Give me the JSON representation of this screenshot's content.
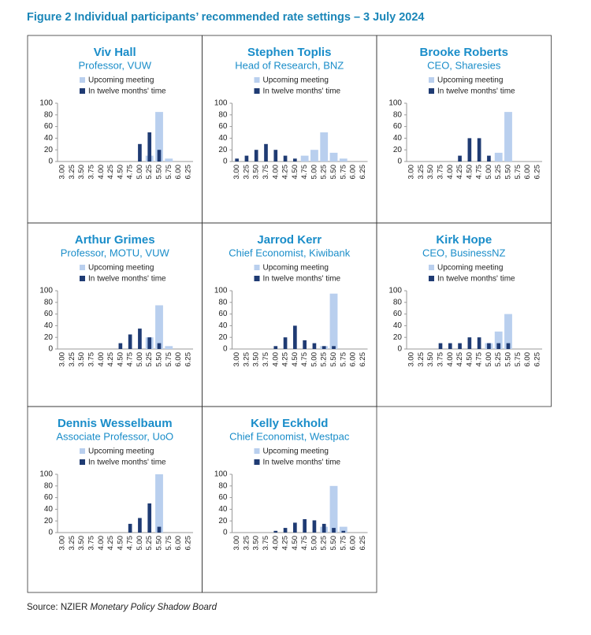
{
  "title": "Figure 2 Individual participants’ recommended rate settings – 3 July 2024",
  "source": {
    "prefix": "Source: NZIER",
    "publication": "Monetary Policy Shadow Board"
  },
  "chart_data": [
    {
      "type": "bar",
      "title": "Viv Hall",
      "subtitle": "Professor, VUW",
      "categories": [
        "3.00",
        "3.25",
        "3.50",
        "3.75",
        "4.00",
        "4.25",
        "4.50",
        "4.75",
        "5.00",
        "5.25",
        "5.50",
        "5.75",
        "6.00",
        "6.25"
      ],
      "series": [
        {
          "name": "Upcoming meeting",
          "color": "#b9cfee",
          "values": [
            0,
            0,
            0,
            0,
            0,
            0,
            0,
            0,
            0,
            10,
            85,
            5,
            0,
            0
          ]
        },
        {
          "name": "In twelve months' time",
          "color": "#1f3b73",
          "values": [
            0,
            0,
            0,
            0,
            0,
            0,
            0,
            0,
            30,
            50,
            20,
            0,
            0,
            0
          ]
        }
      ],
      "ylim": [
        0,
        100
      ],
      "yticks": [
        0,
        20,
        40,
        60,
        80,
        100
      ]
    },
    {
      "type": "bar",
      "title": "Stephen Toplis",
      "subtitle": "Head of Research, BNZ",
      "categories": [
        "3.00",
        "3.25",
        "3.50",
        "3.75",
        "4.00",
        "4.25",
        "4.50",
        "4.75",
        "5.00",
        "5.25",
        "5.50",
        "5.75",
        "6.00",
        "6.25"
      ],
      "series": [
        {
          "name": "Upcoming meeting",
          "color": "#b9cfee",
          "values": [
            0,
            0,
            0,
            0,
            0,
            0,
            0,
            10,
            20,
            50,
            15,
            5,
            0,
            0
          ]
        },
        {
          "name": "In twelve months' time",
          "color": "#1f3b73",
          "values": [
            5,
            10,
            20,
            30,
            20,
            10,
            5,
            0,
            0,
            0,
            0,
            0,
            0,
            0
          ]
        }
      ],
      "ylim": [
        0,
        100
      ],
      "yticks": [
        0,
        20,
        40,
        60,
        80,
        100
      ]
    },
    {
      "type": "bar",
      "title": "Brooke Roberts",
      "subtitle": "CEO, Sharesies",
      "categories": [
        "3.00",
        "3.25",
        "3.50",
        "3.75",
        "4.00",
        "4.25",
        "4.50",
        "4.75",
        "5.00",
        "5.25",
        "5.50",
        "5.75",
        "6.00",
        "6.25"
      ],
      "series": [
        {
          "name": "Upcoming meeting",
          "color": "#b9cfee",
          "values": [
            0,
            0,
            0,
            0,
            0,
            0,
            0,
            0,
            0,
            15,
            85,
            0,
            0,
            0
          ]
        },
        {
          "name": "In twelve months' time",
          "color": "#1f3b73",
          "values": [
            0,
            0,
            0,
            0,
            0,
            10,
            40,
            40,
            10,
            0,
            0,
            0,
            0,
            0
          ]
        }
      ],
      "ylim": [
        0,
        100
      ],
      "yticks": [
        0,
        20,
        40,
        60,
        80,
        100
      ]
    },
    {
      "type": "bar",
      "title": "Arthur Grimes",
      "subtitle": "Professor, MOTU, VUW",
      "categories": [
        "3.00",
        "3.25",
        "3.50",
        "3.75",
        "4.00",
        "4.25",
        "4.50",
        "4.75",
        "5.00",
        "5.25",
        "5.50",
        "5.75",
        "6.00",
        "6.25"
      ],
      "series": [
        {
          "name": "Upcoming meeting",
          "color": "#b9cfee",
          "values": [
            0,
            0,
            0,
            0,
            0,
            0,
            0,
            0,
            0,
            20,
            75,
            5,
            0,
            0
          ]
        },
        {
          "name": "In twelve months' time",
          "color": "#1f3b73",
          "values": [
            0,
            0,
            0,
            0,
            0,
            0,
            10,
            25,
            35,
            20,
            10,
            0,
            0,
            0
          ]
        }
      ],
      "ylim": [
        0,
        100
      ],
      "yticks": [
        0,
        20,
        40,
        60,
        80,
        100
      ]
    },
    {
      "type": "bar",
      "title": "Jarrod Kerr",
      "subtitle": "Chief Economist, Kiwibank",
      "categories": [
        "3.00",
        "3.25",
        "3.50",
        "3.75",
        "4.00",
        "4.25",
        "4.50",
        "4.75",
        "5.00",
        "5.25",
        "5.50",
        "5.75",
        "6.00",
        "6.25"
      ],
      "series": [
        {
          "name": "Upcoming meeting",
          "color": "#b9cfee",
          "values": [
            0,
            0,
            0,
            0,
            0,
            0,
            0,
            0,
            0,
            5,
            95,
            0,
            0,
            0
          ]
        },
        {
          "name": "In twelve months' time",
          "color": "#1f3b73",
          "values": [
            0,
            0,
            0,
            0,
            5,
            20,
            40,
            15,
            10,
            5,
            5,
            0,
            0,
            0
          ]
        }
      ],
      "ylim": [
        0,
        100
      ],
      "yticks": [
        0,
        20,
        40,
        60,
        80,
        100
      ]
    },
    {
      "type": "bar",
      "title": "Kirk Hope",
      "subtitle": "CEO, BusinessNZ",
      "categories": [
        "3.00",
        "3.25",
        "3.50",
        "3.75",
        "4.00",
        "4.25",
        "4.50",
        "4.75",
        "5.00",
        "5.25",
        "5.50",
        "5.75",
        "6.00",
        "6.25"
      ],
      "series": [
        {
          "name": "Upcoming meeting",
          "color": "#b9cfee",
          "values": [
            0,
            0,
            0,
            0,
            0,
            0,
            0,
            0,
            10,
            30,
            60,
            0,
            0,
            0
          ]
        },
        {
          "name": "In twelve months' time",
          "color": "#1f3b73",
          "values": [
            0,
            0,
            0,
            10,
            10,
            10,
            20,
            20,
            10,
            10,
            10,
            0,
            0,
            0
          ]
        }
      ],
      "ylim": [
        0,
        100
      ],
      "yticks": [
        0,
        20,
        40,
        60,
        80,
        100
      ]
    },
    {
      "type": "bar",
      "title": "Dennis Wesselbaum",
      "subtitle": "Associate Professor, UoO",
      "categories": [
        "3.00",
        "3.25",
        "3.50",
        "3.75",
        "4.00",
        "4.25",
        "4.50",
        "4.75",
        "5.00",
        "5.25",
        "5.50",
        "5.75",
        "6.00",
        "6.25"
      ],
      "series": [
        {
          "name": "Upcoming meeting",
          "color": "#b9cfee",
          "values": [
            0,
            0,
            0,
            0,
            0,
            0,
            0,
            0,
            0,
            0,
            100,
            0,
            0,
            0
          ]
        },
        {
          "name": "In twelve months' time",
          "color": "#1f3b73",
          "values": [
            0,
            0,
            0,
            0,
            0,
            0,
            0,
            15,
            25,
            50,
            10,
            0,
            0,
            0
          ]
        }
      ],
      "ylim": [
        0,
        100
      ],
      "yticks": [
        0,
        20,
        40,
        60,
        80,
        100
      ]
    },
    {
      "type": "bar",
      "title": "Kelly Eckhold",
      "subtitle": "Chief Economist, Westpac",
      "categories": [
        "3.00",
        "3.25",
        "3.50",
        "3.75",
        "4.00",
        "4.25",
        "4.50",
        "4.75",
        "5.00",
        "5.25",
        "5.50",
        "5.75",
        "6.00",
        "6.25"
      ],
      "series": [
        {
          "name": "Upcoming meeting",
          "color": "#b9cfee",
          "values": [
            0,
            0,
            0,
            0,
            0,
            0,
            0,
            0,
            0,
            10,
            80,
            10,
            0,
            0
          ]
        },
        {
          "name": "In twelve months' time",
          "color": "#1f3b73",
          "values": [
            0,
            0,
            0,
            0,
            3,
            8,
            17,
            23,
            21,
            15,
            8,
            3,
            0,
            0
          ]
        }
      ],
      "ylim": [
        0,
        100
      ],
      "yticks": [
        0,
        20,
        40,
        60,
        80,
        100
      ]
    }
  ]
}
